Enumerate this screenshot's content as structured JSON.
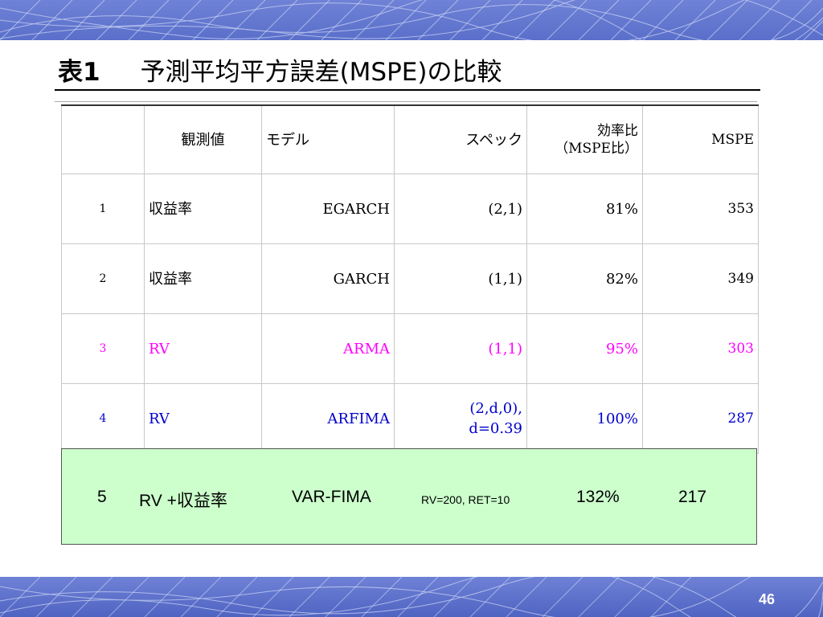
{
  "title": {
    "label": "表1",
    "text": "予測平均平方誤差(MSPE)の比較"
  },
  "table": {
    "headers": {
      "no": "",
      "observed": "観測値",
      "model": "モデル",
      "spec": "スペック",
      "efficiency_line1": "効率比",
      "efficiency_line2": "（MSPE比）",
      "mspe": "MSPE"
    },
    "rows": [
      {
        "no": "1",
        "observed": "収益率",
        "model": "EGARCH",
        "spec": "(2,1)",
        "efficiency": "81%",
        "mspe": "353",
        "color": "#000000"
      },
      {
        "no": "2",
        "observed": "収益率",
        "model": "GARCH",
        "spec": "(1,1)",
        "efficiency": "82%",
        "mspe": "349",
        "color": "#000000"
      },
      {
        "no": "3",
        "observed": "RV",
        "model": "ARMA",
        "spec": "(1,1)",
        "efficiency": "95%",
        "mspe": "303",
        "color": "#ff00ff"
      },
      {
        "no": "4",
        "observed": "RV",
        "model": "ARFIMA",
        "spec_line1": "(2,d,0),",
        "spec_line2": "d=0.39",
        "efficiency": "100%",
        "mspe": "287",
        "color": "#0000cc"
      }
    ]
  },
  "highlight": {
    "no": "5",
    "observed": "RV +収益率",
    "model": "VAR-FIMA",
    "spec": "RV=200, RET=10",
    "efficiency": "132%",
    "mspe": "217",
    "background": "#ccffcc"
  },
  "page_number": "46",
  "colors": {
    "band": "#5a6fca",
    "accent_magenta": "#ff00ff",
    "accent_blue": "#0000cc"
  }
}
